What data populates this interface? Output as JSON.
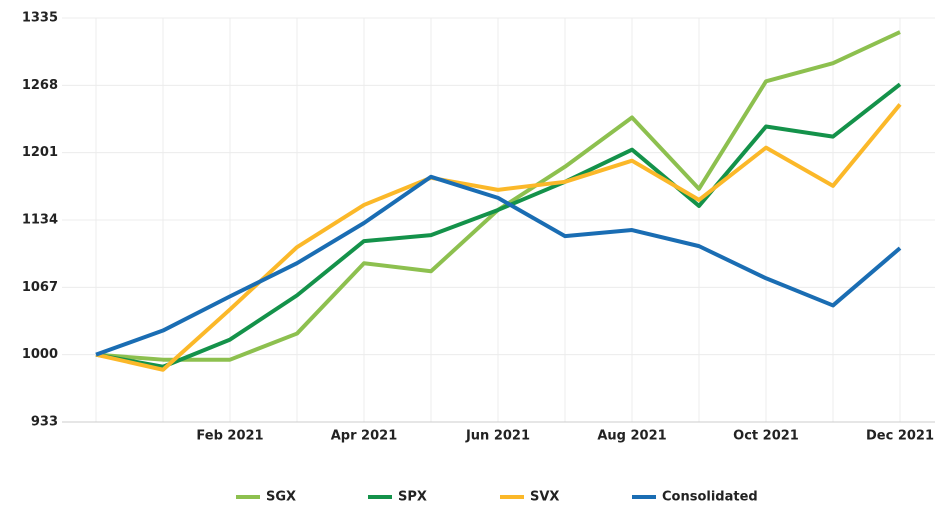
{
  "chart_data": {
    "type": "line",
    "categories": [
      "",
      "",
      "Feb 2021",
      "",
      "Apr 2021",
      "",
      "Jun 2021",
      "",
      "Aug 2021",
      "",
      "Oct 2021",
      "",
      "Dec 2021"
    ],
    "series": [
      {
        "name": "SGX",
        "color": "#8dc04f",
        "values": [
          1000,
          995,
          995,
          1021,
          1091,
          1083,
          1144,
          1187,
          1236,
          1165,
          1272,
          1290,
          1321
        ]
      },
      {
        "name": "SPX",
        "color": "#14924a",
        "values": [
          1000,
          988,
          1015,
          1059,
          1113,
          1119,
          1144,
          1172,
          1204,
          1148,
          1227,
          1217,
          1269
        ]
      },
      {
        "name": "SVX",
        "color": "#fbb829",
        "values": [
          1000,
          985,
          1045,
          1107,
          1149,
          1176,
          1164,
          1172,
          1193,
          1154,
          1206,
          1168,
          1249
        ]
      },
      {
        "name": "Consolidated",
        "color": "#1a6db3",
        "values": [
          1000,
          1024,
          1058,
          1091,
          1131,
          1177,
          1156,
          1118,
          1124,
          1108,
          1076,
          1049,
          1106
        ]
      }
    ],
    "ylim": [
      933,
      1335
    ],
    "yticks": [
      933,
      1000,
      1067,
      1134,
      1201,
      1268,
      1335
    ],
    "grid": true
  }
}
